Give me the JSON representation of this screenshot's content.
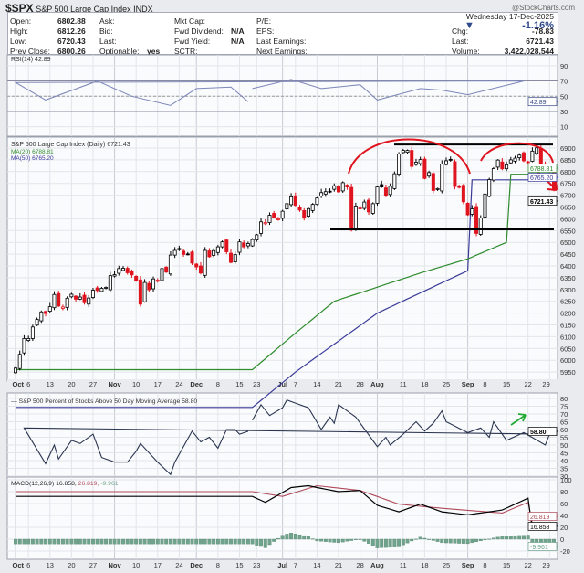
{
  "header": {
    "symbol": "$SPX",
    "name": "S&P 500 Large Cap Index",
    "exchange": "INDX",
    "brand": "@StockCharts.com"
  },
  "info": {
    "col1": [
      [
        "Open:",
        "6802.88"
      ],
      [
        "High:",
        "6812.26"
      ],
      [
        "Low:",
        "6720.43"
      ],
      [
        "Prev Close:",
        "6800.26"
      ]
    ],
    "col2": [
      [
        "Ask:",
        ""
      ],
      [
        "Bid:",
        ""
      ],
      [
        "Last:",
        ""
      ],
      [
        "Optionable:",
        "yes"
      ]
    ],
    "col3": [
      [
        "Mkt Cap:",
        ""
      ],
      [
        "Fwd Dividend:",
        "N/A"
      ],
      [
        "Fwd Yield:",
        "N/A"
      ],
      [
        "SCTR:",
        ""
      ]
    ],
    "col4": [
      "P/E:",
      "EPS:",
      "Last Earnings:",
      "Next Earnings:"
    ],
    "date": "Wednesday  17-Dec-2025",
    "pct": "-1.16%",
    "right": [
      [
        "Chg:",
        "-78.83"
      ],
      [
        "Last:",
        "6721.43"
      ],
      [
        "Volume:",
        "3,422,028,544"
      ]
    ]
  },
  "chart_data": {
    "type": "candlestick",
    "colors": {
      "up": "#000000",
      "down": "#e0141e",
      "ma20": "#2e8b2e",
      "ma50": "#3a3a9a",
      "breadth": "#2b3550",
      "macd": "#000000",
      "signal": "#b04a5a",
      "hist": "#6fa38c",
      "annotation": "#e0141e",
      "arrow_green": "#22aa33"
    },
    "trading_days": {
      "06": [
        20,
        23,
        24,
        25,
        26,
        27,
        30
      ],
      "07": [
        1,
        2,
        3,
        7,
        8,
        9,
        10,
        11,
        14,
        15,
        16,
        17,
        18,
        21,
        22,
        23,
        24,
        25,
        28,
        29,
        30,
        31
      ],
      "08": [
        1,
        4,
        5,
        6,
        7,
        8,
        11,
        12,
        13,
        14,
        15,
        18,
        19,
        20,
        21,
        22,
        25,
        26,
        27,
        28,
        29
      ],
      "09": [
        2,
        3,
        4,
        5,
        8,
        9,
        10,
        11,
        12,
        15,
        16,
        17,
        18,
        19,
        22,
        23,
        24,
        25,
        26,
        29,
        30
      ],
      "10": [
        1,
        2,
        3,
        6,
        7,
        8,
        9,
        10,
        13,
        14,
        15,
        16,
        17,
        20,
        21,
        22,
        23,
        24,
        27,
        28,
        29,
        30,
        31
      ],
      "11": [
        3,
        4,
        5,
        6,
        7,
        10,
        11,
        12,
        13,
        14,
        17,
        18,
        19,
        20,
        21,
        24,
        25,
        26,
        28
      ],
      "12": [
        1,
        2,
        3,
        4,
        5,
        8,
        9,
        10,
        11,
        12,
        15,
        16,
        17
      ]
    },
    "closes": [
      5967,
      6025,
      6092,
      6092,
      6141,
      6173,
      6205,
      6198,
      6227,
      6279,
      6230,
      6226,
      6263,
      6280,
      6259,
      6268,
      6244,
      6264,
      6297,
      6296,
      6305,
      6309,
      6359,
      6363,
      6389,
      6390,
      6371,
      6362,
      6339,
      6238,
      6330,
      6299,
      6345,
      6340,
      6389,
      6374,
      6446,
      6466,
      6469,
      6449,
      6449,
      6412,
      6396,
      6370,
      6466,
      6439,
      6465,
      6481,
      6502,
      6460,
      6415,
      6448,
      6502,
      6481,
      6495,
      6512,
      6532,
      6587,
      6584,
      6615,
      6606,
      6600,
      6632,
      6664,
      6693,
      6657,
      6637,
      6605,
      6643,
      6661,
      6688,
      6711,
      6715,
      6715,
      6740,
      6714,
      6753,
      6735,
      6552,
      6654,
      6644,
      6671,
      6629,
      6664,
      6735,
      6735,
      6699,
      6738,
      6791,
      6875,
      6890,
      6890,
      6822,
      6840,
      6851,
      6771,
      6796,
      6720,
      6728,
      6832,
      6846,
      6850,
      6737,
      6734,
      6672,
      6617,
      6642,
      6538,
      6603,
      6705,
      6766,
      6813,
      6849,
      6812,
      6829,
      6850,
      6857,
      6870,
      6846,
      6840,
      6887,
      6901,
      6827,
      6816,
      6800,
      6721
    ],
    "price_panel": {
      "title": "S&P 500 Large Cap Index (Daily) 6721.43",
      "ma20_label": "MA(20) 6788.81",
      "ma50_label": "MA(50) 6765.20",
      "last": "6721.43",
      "ma20_last": "6788.81",
      "ma50_last": "6765.20",
      "yticks": [
        6900,
        6850,
        6800,
        6750,
        6700,
        6650,
        6600,
        6550,
        6500,
        6450,
        6400,
        6350,
        6300,
        6250,
        6200,
        6150,
        6100,
        6050,
        6000,
        5950
      ],
      "ma20": [
        [
          "06-20",
          5960
        ],
        [
          "07-03",
          6100
        ],
        [
          "07-18",
          6250
        ],
        [
          "08-01",
          6310
        ],
        [
          "08-15",
          6370
        ],
        [
          "09-02",
          6430
        ],
        [
          "09-15",
          6500
        ],
        [
          "10-01",
          6620
        ],
        [
          "10-15",
          6690
        ],
        [
          "11-03",
          6730
        ],
        [
          "11-14",
          6760
        ],
        [
          "11-25",
          6700
        ],
        [
          "12-05",
          6740
        ],
        [
          "12-17",
          6788.81
        ]
      ],
      "ma50": [
        [
          "06-20",
          5800
        ],
        [
          "07-07",
          5950
        ],
        [
          "08-01",
          6200
        ],
        [
          "09-02",
          6380
        ],
        [
          "10-01",
          6560
        ],
        [
          "11-03",
          6700
        ],
        [
          "12-01",
          6740
        ],
        [
          "12-17",
          6765.2
        ]
      ],
      "resistance": 6915,
      "support": 6555
    },
    "rsi": {
      "label": "RSI(14) 42.89",
      "last": "42.89",
      "yticks": [
        90,
        70,
        50,
        30,
        10
      ],
      "points": [
        [
          "06-20",
          60
        ],
        [
          "07-03",
          72
        ],
        [
          "07-15",
          60
        ],
        [
          "07-28",
          65
        ],
        [
          "08-01",
          45
        ],
        [
          "08-15",
          60
        ],
        [
          "08-22",
          58
        ],
        [
          "09-02",
          52
        ],
        [
          "09-19",
          70
        ],
        [
          "10-01",
          68
        ],
        [
          "10-10",
          45
        ],
        [
          "10-28",
          70
        ],
        [
          "11-07",
          50
        ],
        [
          "11-20",
          38
        ],
        [
          "12-01",
          60
        ],
        [
          "12-11",
          62
        ],
        [
          "12-17",
          42.89
        ]
      ]
    },
    "breadth": {
      "label": "S&P 500 Percent of Stocks Above 50 Day Moving Average 58.80",
      "last": "58.80",
      "yticks": [
        80,
        75,
        70,
        65,
        60,
        55,
        50,
        45,
        40,
        35,
        30
      ],
      "points": [
        [
          "06-20",
          66
        ],
        [
          "06-24",
          76
        ],
        [
          "06-26",
          69
        ],
        [
          "07-01",
          74
        ],
        [
          "07-02",
          79
        ],
        [
          "07-07",
          77
        ],
        [
          "07-10",
          74
        ],
        [
          "07-15",
          60
        ],
        [
          "07-17",
          68
        ],
        [
          "07-18",
          64
        ],
        [
          "07-21",
          76
        ],
        [
          "07-25",
          68
        ],
        [
          "08-01",
          49
        ],
        [
          "08-05",
          55
        ],
        [
          "08-06",
          50
        ],
        [
          "08-11",
          57
        ],
        [
          "08-14",
          65
        ],
        [
          "08-18",
          59
        ],
        [
          "08-20",
          64
        ],
        [
          "08-22",
          72
        ],
        [
          "08-25",
          65
        ],
        [
          "09-02",
          58
        ],
        [
          "09-05",
          61
        ],
        [
          "09-09",
          55
        ],
        [
          "09-10",
          65
        ],
        [
          "09-15",
          53
        ],
        [
          "09-19",
          58
        ],
        [
          "09-26",
          50
        ],
        [
          "09-29",
          57
        ],
        [
          "10-03",
          61
        ],
        [
          "10-10",
          38
        ],
        [
          "10-14",
          50
        ],
        [
          "10-15",
          41
        ],
        [
          "10-20",
          53
        ],
        [
          "10-22",
          51
        ],
        [
          "10-27",
          57
        ],
        [
          "10-29",
          42
        ],
        [
          "11-03",
          39
        ],
        [
          "11-06",
          39
        ],
        [
          "11-10",
          46
        ],
        [
          "11-11",
          51
        ],
        [
          "11-17",
          39
        ],
        [
          "11-20",
          31
        ],
        [
          "11-21",
          39
        ],
        [
          "11-28",
          59
        ],
        [
          "12-02",
          52
        ],
        [
          "12-04",
          55
        ],
        [
          "12-08",
          48
        ],
        [
          "12-10",
          60
        ],
        [
          "12-12",
          60
        ],
        [
          "12-15",
          57
        ],
        [
          "12-17",
          58.8
        ]
      ]
    },
    "macd": {
      "label": "MACD(12,26,9) 16.858,",
      "signal_label": "26.819,",
      "hist_label": "-9.961",
      "macd_last": "16.858",
      "signal_last": "26.819",
      "hist_last": "-9.961",
      "yticks": [
        100,
        80,
        60,
        40,
        20,
        0,
        -20
      ],
      "macd": [
        [
          "06-20",
          72
        ],
        [
          "06-25",
          62
        ],
        [
          "07-03",
          87
        ],
        [
          "07-10",
          90
        ],
        [
          "07-14",
          87
        ],
        [
          "07-21",
          80
        ],
        [
          "07-28",
          82
        ],
        [
          "08-01",
          57
        ],
        [
          "08-08",
          46
        ],
        [
          "08-15",
          59
        ],
        [
          "08-22",
          46
        ],
        [
          "09-02",
          41
        ],
        [
          "09-12",
          49
        ],
        [
          "09-22",
          69
        ],
        [
          "10-01",
          59
        ],
        [
          "10-08",
          63
        ],
        [
          "10-15",
          29
        ],
        [
          "10-24",
          34
        ],
        [
          "10-31",
          62
        ],
        [
          "11-04",
          62
        ],
        [
          "11-10",
          34
        ],
        [
          "11-14",
          36
        ],
        [
          "11-21",
          -30
        ],
        [
          "11-28",
          6
        ],
        [
          "12-08",
          31
        ],
        [
          "12-11",
          39
        ],
        [
          "12-17",
          16.858
        ]
      ],
      "signal": [
        [
          "06-20",
          80
        ],
        [
          "07-01",
          72
        ],
        [
          "07-14",
          90
        ],
        [
          "07-28",
          82
        ],
        [
          "08-08",
          59
        ],
        [
          "08-22",
          52
        ],
        [
          "09-12",
          44
        ],
        [
          "09-22",
          62
        ],
        [
          "10-08",
          62
        ],
        [
          "10-24",
          34
        ],
        [
          "11-04",
          54
        ],
        [
          "11-14",
          44
        ],
        [
          "11-24",
          -7
        ],
        [
          "12-02",
          8
        ],
        [
          "12-11",
          29
        ],
        [
          "12-17",
          26.819
        ]
      ]
    },
    "xticks": [
      [
        "23",
        "06-23",
        0
      ],
      [
        "Jul",
        "07-01",
        1
      ],
      [
        "7",
        "07-07",
        0
      ],
      [
        "14",
        "07-14",
        0
      ],
      [
        "21",
        "07-21",
        0
      ],
      [
        "28",
        "07-28",
        0
      ],
      [
        "Aug",
        "08-01",
        1
      ],
      [
        "11",
        "08-11",
        0
      ],
      [
        "18",
        "08-18",
        0
      ],
      [
        "25",
        "08-25",
        0
      ],
      [
        "Sep",
        "09-02",
        1
      ],
      [
        "8",
        "09-08",
        0
      ],
      [
        "15",
        "09-15",
        0
      ],
      [
        "22",
        "09-22",
        0
      ],
      [
        "29",
        "09-29",
        0
      ],
      [
        "Oct",
        "10-01",
        1
      ],
      [
        "6",
        "10-06",
        0
      ],
      [
        "13",
        "10-13",
        0
      ],
      [
        "20",
        "10-20",
        0
      ],
      [
        "27",
        "10-27",
        0
      ],
      [
        "Nov",
        "11-03",
        1
      ],
      [
        "10",
        "11-10",
        0
      ],
      [
        "17",
        "11-17",
        0
      ],
      [
        "24",
        "11-24",
        0
      ],
      [
        "Dec",
        "12-01",
        1
      ],
      [
        "8",
        "12-08",
        0
      ],
      [
        "15",
        "12-15",
        0
      ]
    ]
  }
}
